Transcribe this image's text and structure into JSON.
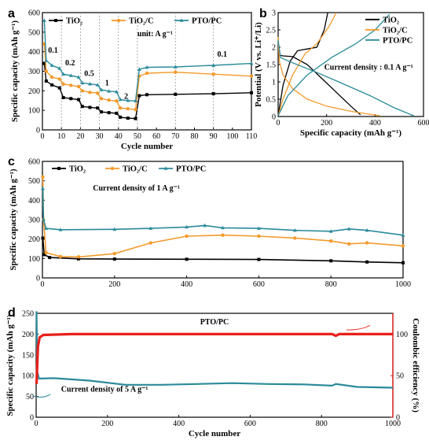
{
  "chart_data": [
    {
      "panel": "a",
      "type": "line",
      "xlabel": "Cycle number",
      "ylabel": "Specific capacity (mAh g⁻¹)",
      "xlim": [
        0,
        110
      ],
      "ylim": [
        0,
        600
      ],
      "xticks": [
        0,
        10,
        20,
        30,
        40,
        50,
        60,
        70,
        80,
        90,
        100,
        110
      ],
      "yticks": [
        0,
        100,
        200,
        300,
        400,
        500,
        600
      ],
      "unit_note": "unit: A g⁻¹",
      "rate_labels": [
        {
          "text": "0.1",
          "x": 3,
          "y": 395
        },
        {
          "text": "0.2",
          "x": 12,
          "y": 330
        },
        {
          "text": "0.5",
          "x": 22,
          "y": 275
        },
        {
          "text": "1",
          "x": 33,
          "y": 228
        },
        {
          "text": "2",
          "x": 43,
          "y": 160
        },
        {
          "text": "0.1",
          "x": 92,
          "y": 375
        }
      ],
      "segment_lines": [
        10,
        20,
        30,
        40,
        50,
        70,
        90
      ],
      "series": [
        {
          "name": "TiO₂",
          "color": "#000000",
          "marker": "square",
          "points": [
            [
              1,
              340
            ],
            [
              2,
              250
            ],
            [
              5,
              230
            ],
            [
              9,
              215
            ],
            [
              11,
              165
            ],
            [
              15,
              160
            ],
            [
              19,
              155
            ],
            [
              21,
              120
            ],
            [
              25,
              115
            ],
            [
              29,
              112
            ],
            [
              31,
              92
            ],
            [
              35,
              88
            ],
            [
              39,
              85
            ],
            [
              41,
              65
            ],
            [
              45,
              60
            ],
            [
              49,
              58
            ],
            [
              51,
              175
            ],
            [
              55,
              180
            ],
            [
              70,
              182
            ],
            [
              90,
              185
            ],
            [
              110,
              190
            ]
          ]
        },
        {
          "name": "TiO₂/C",
          "color": "#f39a2c",
          "marker": "circle",
          "points": [
            [
              1,
              440
            ],
            [
              2,
              300
            ],
            [
              5,
              270
            ],
            [
              9,
              260
            ],
            [
              11,
              235
            ],
            [
              15,
              228
            ],
            [
              19,
              222
            ],
            [
              21,
              200
            ],
            [
              25,
              192
            ],
            [
              29,
              188
            ],
            [
              31,
              160
            ],
            [
              35,
              152
            ],
            [
              39,
              148
            ],
            [
              41,
              112
            ],
            [
              45,
              108
            ],
            [
              49,
              104
            ],
            [
              51,
              275
            ],
            [
              55,
              290
            ],
            [
              70,
              295
            ],
            [
              90,
              285
            ],
            [
              110,
              275
            ]
          ]
        },
        {
          "name": "PTO/PC",
          "color": "#2a8a9a",
          "marker": "triangle",
          "points": [
            [
              1,
              560
            ],
            [
              2,
              355
            ],
            [
              5,
              330
            ],
            [
              9,
              315
            ],
            [
              11,
              285
            ],
            [
              15,
              278
            ],
            [
              19,
              270
            ],
            [
              21,
              240
            ],
            [
              25,
              235
            ],
            [
              29,
              230
            ],
            [
              31,
              205
            ],
            [
              35,
              198
            ],
            [
              39,
              195
            ],
            [
              41,
              155
            ],
            [
              45,
              150
            ],
            [
              49,
              148
            ],
            [
              51,
              310
            ],
            [
              55,
              320
            ],
            [
              70,
              322
            ],
            [
              90,
              330
            ],
            [
              110,
              340
            ]
          ]
        }
      ]
    },
    {
      "panel": "b",
      "type": "line",
      "xlabel": "Specific capacity (mAh g⁻¹)",
      "ylabel": "Potential (V vs. Li⁺/Li)",
      "xlim": [
        0,
        600
      ],
      "ylim": [
        0,
        3
      ],
      "xticks": [
        0,
        200,
        400,
        600
      ],
      "yticks": [
        0,
        0.5,
        1.0,
        1.5,
        2.0,
        2.5,
        3.0
      ],
      "annotation": "Current density : 0.1 A g⁻¹",
      "series": [
        {
          "name": "TiO₂",
          "color": "#000000",
          "discharge": [
            [
              0,
              1.78
            ],
            [
              20,
              1.75
            ],
            [
              60,
              1.73
            ],
            [
              120,
              1.5
            ],
            [
              180,
              1.1
            ],
            [
              240,
              0.7
            ],
            [
              300,
              0.3
            ],
            [
              340,
              0.05
            ]
          ],
          "charge": [
            [
              0,
              0.02
            ],
            [
              20,
              0.9
            ],
            [
              50,
              1.6
            ],
            [
              80,
              1.9
            ],
            [
              120,
              1.95
            ],
            [
              160,
              2.0
            ],
            [
              190,
              2.5
            ],
            [
              205,
              3.0
            ]
          ]
        },
        {
          "name": "TiO₂/C",
          "color": "#f39a2c",
          "discharge": [
            [
              0,
              2.3
            ],
            [
              5,
              1.6
            ],
            [
              20,
              1.2
            ],
            [
              60,
              0.8
            ],
            [
              120,
              0.5
            ],
            [
              200,
              0.3
            ],
            [
              300,
              0.15
            ],
            [
              420,
              0.02
            ]
          ],
          "charge": [
            [
              0,
              0.02
            ],
            [
              20,
              0.5
            ],
            [
              60,
              1.2
            ],
            [
              110,
              1.8
            ],
            [
              160,
              2.1
            ],
            [
              210,
              2.6
            ],
            [
              240,
              3.0
            ]
          ]
        },
        {
          "name": "PTO/PC",
          "color": "#2a8a9a",
          "discharge": [
            [
              0,
              2.2
            ],
            [
              10,
              1.7
            ],
            [
              60,
              1.55
            ],
            [
              150,
              1.3
            ],
            [
              250,
              1.0
            ],
            [
              380,
              0.6
            ],
            [
              480,
              0.25
            ],
            [
              560,
              0.02
            ]
          ],
          "charge": [
            [
              0,
              0.02
            ],
            [
              40,
              0.6
            ],
            [
              120,
              1.2
            ],
            [
              220,
              1.7
            ],
            [
              320,
              2.1
            ],
            [
              400,
              2.5
            ],
            [
              460,
              2.95
            ]
          ]
        }
      ]
    },
    {
      "panel": "c",
      "type": "line",
      "xlabel": "",
      "ylabel": "Specific capacity (mAh g⁻¹)",
      "xlim": [
        0,
        1000
      ],
      "ylim": [
        0,
        600
      ],
      "xticks": [
        0,
        200,
        400,
        600,
        800,
        1000
      ],
      "yticks": [
        0,
        100,
        200,
        300,
        400,
        500,
        600
      ],
      "annotation": "Current density of 1 A g⁻¹",
      "series": [
        {
          "name": "TiO₂",
          "color": "#000000",
          "marker": "square",
          "points": [
            [
              1,
              205
            ],
            [
              5,
              120
            ],
            [
              20,
              105
            ],
            [
              100,
              98
            ],
            [
              200,
              97
            ],
            [
              400,
              96
            ],
            [
              600,
              95
            ],
            [
              800,
              88
            ],
            [
              900,
              82
            ],
            [
              1000,
              78
            ]
          ]
        },
        {
          "name": "TiO₂/C",
          "color": "#f39a2c",
          "marker": "circle",
          "points": [
            [
              1,
              520
            ],
            [
              3,
              300
            ],
            [
              10,
              130
            ],
            [
              50,
              110
            ],
            [
              100,
              108
            ],
            [
              200,
              125
            ],
            [
              300,
              180
            ],
            [
              400,
              215
            ],
            [
              500,
              220
            ],
            [
              600,
              215
            ],
            [
              700,
              205
            ],
            [
              800,
              190
            ],
            [
              850,
              175
            ],
            [
              900,
              180
            ],
            [
              1000,
              165
            ]
          ]
        },
        {
          "name": "PTO/PC",
          "color": "#2a8a9a",
          "marker": "triangle",
          "points": [
            [
              1,
              460
            ],
            [
              3,
              300
            ],
            [
              10,
              255
            ],
            [
              50,
              248
            ],
            [
              200,
              250
            ],
            [
              300,
              255
            ],
            [
              400,
              262
            ],
            [
              450,
              270
            ],
            [
              500,
              258
            ],
            [
              600,
              255
            ],
            [
              700,
              245
            ],
            [
              800,
              240
            ],
            [
              850,
              252
            ],
            [
              900,
              245
            ],
            [
              1000,
              220
            ]
          ]
        }
      ]
    },
    {
      "panel": "d",
      "type": "line",
      "title": "PTO/PC",
      "xlabel": "Cycle number",
      "ylabel": "Specific capacity (mAh g⁻¹)",
      "y2label": "Coulombic efficiency (%)",
      "xlim": [
        0,
        1000
      ],
      "ylim": [
        0,
        250
      ],
      "y2lim": [
        0,
        125
      ],
      "xticks": [
        0,
        200,
        400,
        600,
        800,
        1000
      ],
      "yticks": [
        0,
        50,
        100,
        150,
        200,
        250
      ],
      "y2ticks": [
        0,
        50,
        100
      ],
      "annotation": "Current density of 5 A g⁻¹",
      "series": [
        {
          "name": "PTO/PC",
          "axis": "left",
          "color": "#2a8a9a",
          "points": [
            [
              1,
              255
            ],
            [
              3,
              110
            ],
            [
              8,
              93
            ],
            [
              50,
              94
            ],
            [
              150,
              88
            ],
            [
              250,
              78
            ],
            [
              350,
              78
            ],
            [
              450,
              80
            ],
            [
              550,
              82
            ],
            [
              650,
              80
            ],
            [
              750,
              79
            ],
            [
              830,
              76
            ],
            [
              840,
              80
            ],
            [
              900,
              73
            ],
            [
              1000,
              71
            ]
          ]
        },
        {
          "name": "Coulombic efficiency",
          "axis": "right",
          "color": "#e8201a",
          "points": [
            [
              1,
              40
            ],
            [
              5,
              85
            ],
            [
              10,
              96
            ],
            [
              20,
              99
            ],
            [
              100,
              100
            ],
            [
              400,
              100
            ],
            [
              700,
              100
            ],
            [
              830,
              100
            ],
            [
              840,
              98
            ],
            [
              850,
              100
            ],
            [
              1000,
              100
            ]
          ]
        }
      ]
    }
  ]
}
